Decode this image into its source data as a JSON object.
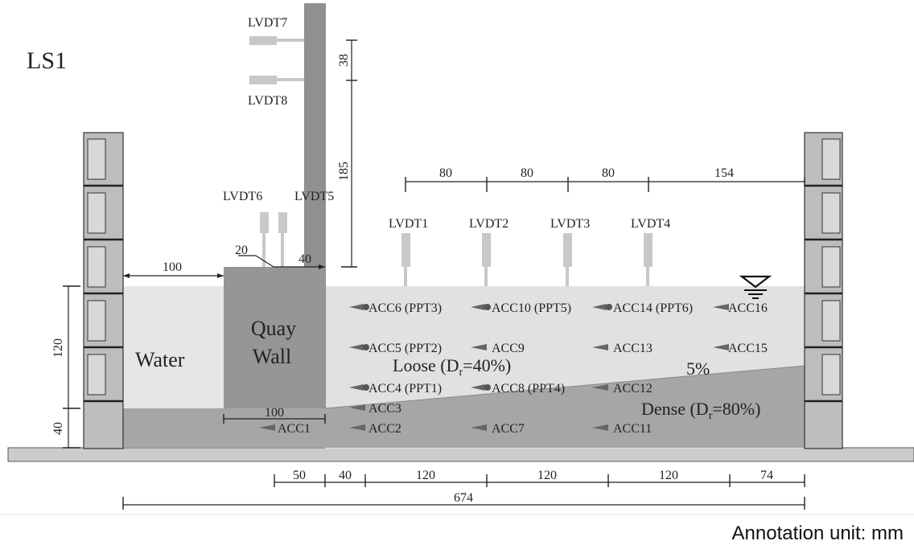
{
  "title": "LS1",
  "footer_note": "Annotation unit: mm",
  "colors": {
    "water": "#e6e6e6",
    "loose": "#e1e1e1",
    "dense": "#a6a6a6",
    "quay_wall": "#969696",
    "mast": "#909090",
    "sensor": "#c8c8c8",
    "container": "#bdbdbd",
    "base_plate": "#cccccc"
  },
  "labels": {
    "water": "Water",
    "quay_wall_line1": "Quay",
    "quay_wall_line2": "Wall",
    "loose_prefix": "Loose (D",
    "loose_sub": "r",
    "loose_suffix": "=40%)",
    "dense_prefix": "Dense (D",
    "dense_sub": "r",
    "dense_suffix": "=80%)",
    "slope": "5%"
  },
  "lvdts": {
    "lvdt1": "LVDT1",
    "lvdt2": "LVDT2",
    "lvdt3": "LVDT3",
    "lvdt4": "LVDT4",
    "lvdt5": "LVDT5",
    "lvdt6": "LVDT6",
    "lvdt7": "LVDT7",
    "lvdt8": "LVDT8"
  },
  "accs": {
    "acc1": "ACC1",
    "acc2": "ACC2",
    "acc3": "ACC3",
    "acc4": "ACC4 (PPT1)",
    "acc5": "ACC5 (PPT2)",
    "acc6": "ACC6 (PPT3)",
    "acc7": "ACC7",
    "acc8": "ACC8 (PPT4)",
    "acc9": "ACC9",
    "acc10": "ACC10 (PPT5)",
    "acc11": "ACC11",
    "acc12": "ACC12",
    "acc13": "ACC13",
    "acc14": "ACC14 (PPT6)",
    "acc15": "ACC15",
    "acc16": "ACC16"
  },
  "dimensions": {
    "top_80_a": "80",
    "top_80_b": "80",
    "top_80_c": "80",
    "top_154": "154",
    "mast_38": "38",
    "mast_185": "185",
    "water_100": "100",
    "wall_20": "20",
    "wall_40": "40",
    "wall_base_100": "100",
    "left_120": "120",
    "left_40": "40",
    "bottom_50": "50",
    "bottom_40": "40",
    "bottom_120_a": "120",
    "bottom_120_b": "120",
    "bottom_120_c": "120",
    "bottom_74": "74",
    "bottom_674": "674"
  }
}
